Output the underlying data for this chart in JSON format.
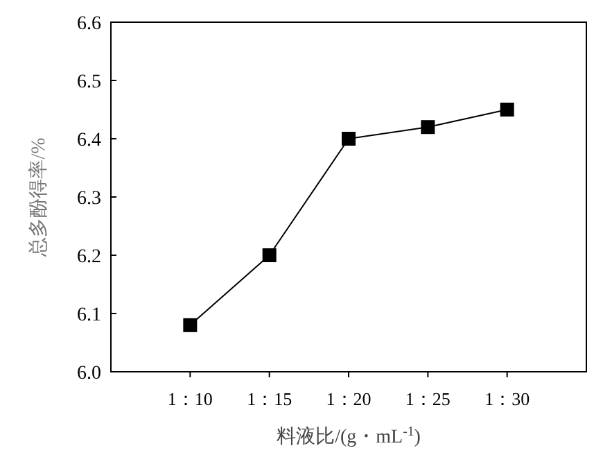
{
  "chart_data": {
    "type": "line",
    "xlabel": "料液比/(g・mL$^{-1}$)",
    "ylabel": "总多酚得率/%",
    "categories": [
      "1：10",
      "1：15",
      "1：20",
      "1：25",
      "1：30"
    ],
    "series": [
      {
        "color": "#000000",
        "values": [
          6.08,
          6.2,
          6.4,
          6.42,
          6.45
        ]
      }
    ],
    "ylim": [
      6.0,
      6.6
    ],
    "yticks": [
      {
        "value": 6.0,
        "label": "6.0"
      },
      6.1,
      6.2,
      6.3,
      6.4,
      6.5,
      6.6
    ],
    "marker": "square",
    "line_style": "solid"
  }
}
